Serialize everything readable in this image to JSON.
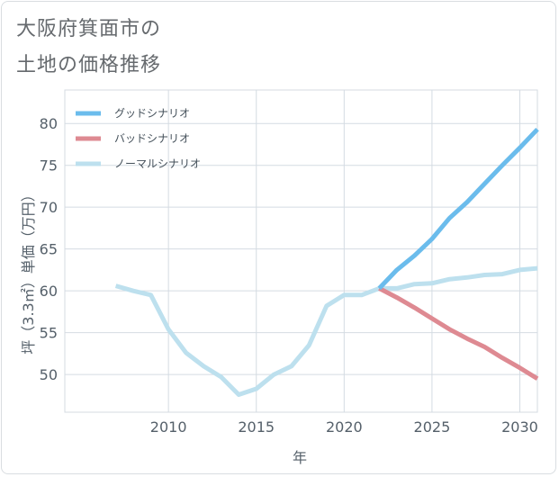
{
  "chart_data": {
    "type": "line",
    "title_lines": [
      "大阪府箕面市の",
      "土地の価格推移"
    ],
    "xlabel": "年",
    "ylabel": "坪（3.3㎡）単価（万円）",
    "xlim": [
      2004.1,
      2031
    ],
    "ylim": [
      45.5,
      84
    ],
    "xticks": [
      2010,
      2015,
      2020,
      2025,
      2030
    ],
    "yticks": [
      50,
      55,
      60,
      65,
      70,
      75,
      80
    ],
    "grid": true,
    "legend_position": "top-left",
    "series": [
      {
        "name": "グッドシナリオ",
        "color": "#6bbcec",
        "x": [
          2022,
          2023,
          2024,
          2025,
          2026,
          2027,
          2028,
          2029,
          2030,
          2031
        ],
        "values": [
          60.3,
          62.5,
          64.2,
          66.2,
          68.7,
          70.6,
          72.8,
          75.0,
          77.1,
          79.3
        ]
      },
      {
        "name": "バッドシナリオ",
        "color": "#de8a92",
        "x": [
          2022,
          2023,
          2024,
          2025,
          2026,
          2027,
          2028,
          2029,
          2030,
          2031
        ],
        "values": [
          60.3,
          59.2,
          58.0,
          56.7,
          55.4,
          54.3,
          53.3,
          52.0,
          50.8,
          49.5
        ]
      },
      {
        "name": "ノーマルシナリオ",
        "color": "#bde0ee",
        "x": [
          2007,
          2008,
          2009,
          2010,
          2011,
          2012,
          2013,
          2014,
          2015,
          2016,
          2017,
          2018,
          2019,
          2020,
          2021,
          2022,
          2023,
          2024,
          2025,
          2026,
          2027,
          2028,
          2029,
          2030,
          2031
        ],
        "values": [
          60.6,
          60.0,
          59.5,
          55.4,
          52.6,
          51.0,
          49.7,
          47.6,
          48.3,
          50.0,
          51.0,
          53.5,
          58.2,
          59.5,
          59.5,
          60.3,
          60.3,
          60.8,
          60.9,
          61.4,
          61.6,
          61.9,
          62.0,
          62.5,
          62.7
        ]
      }
    ]
  }
}
